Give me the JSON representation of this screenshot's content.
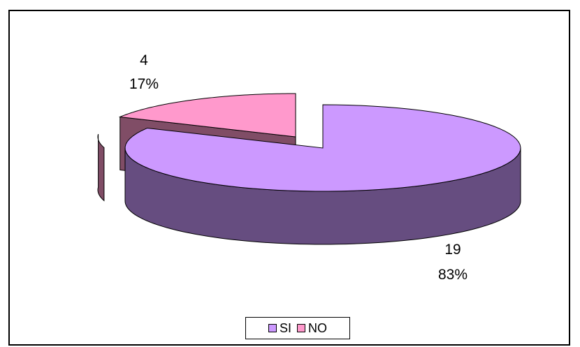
{
  "chart_data": {
    "type": "pie",
    "style": "3d-exploded",
    "categories": [
      "SI",
      "NO"
    ],
    "values": [
      19,
      4
    ],
    "percent_labels": [
      "83%",
      "17%"
    ],
    "value_labels": [
      "19",
      "4"
    ],
    "colors": {
      "SI_top": "#cc99ff",
      "SI_side": "#664d80",
      "NO_top": "#ff99cc",
      "NO_side": "#804d66"
    },
    "legend": {
      "placement": "bottom",
      "entries": [
        {
          "label": "SI",
          "color": "#cc99ff"
        },
        {
          "label": "NO",
          "color": "#ff99cc"
        }
      ]
    }
  }
}
